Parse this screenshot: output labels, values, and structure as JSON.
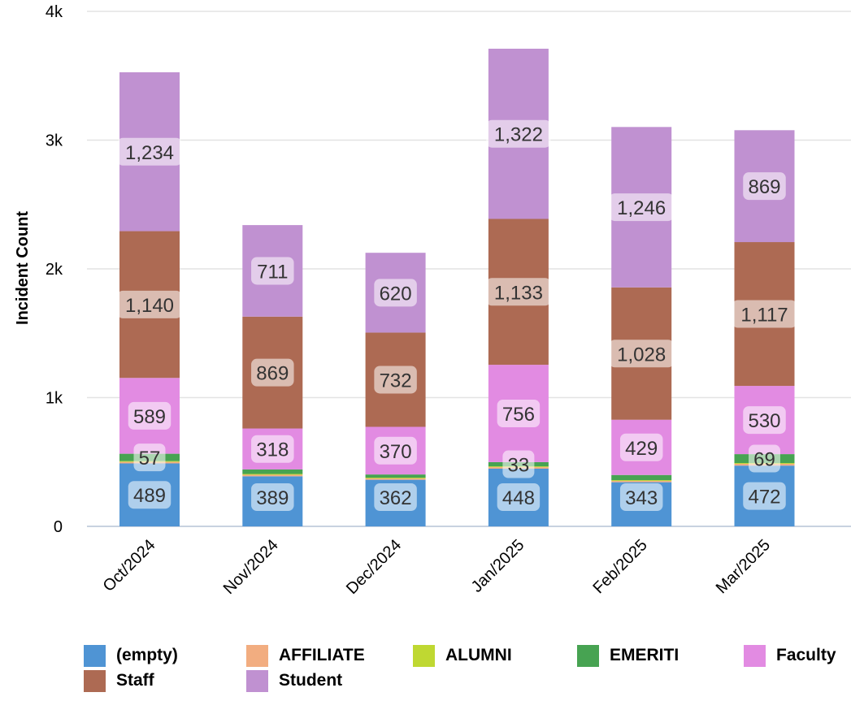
{
  "chart_data": {
    "type": "bar",
    "stacked": true,
    "categories": [
      "Oct/2024",
      "Nov/2024",
      "Dec/2024",
      "Jan/2025",
      "Feb/2025",
      "Mar/2025"
    ],
    "ylabel": "Incident Count",
    "ylim": [
      0,
      4000
    ],
    "y_ticks": [
      {
        "value": 0,
        "label": "0"
      },
      {
        "value": 1000,
        "label": "1k"
      },
      {
        "value": 2000,
        "label": "2k"
      },
      {
        "value": 3000,
        "label": "3k"
      },
      {
        "value": 4000,
        "label": "4k"
      }
    ],
    "grid": true,
    "legend_position": "bottom",
    "series": [
      {
        "name": "(empty)",
        "color": "#4f94d4",
        "values": [
          489,
          389,
          362,
          448,
          343,
          472
        ]
      },
      {
        "name": "AFFILIATE",
        "color": "#f2ad80",
        "values": [
          12,
          12,
          10,
          12,
          10,
          14
        ]
      },
      {
        "name": "ALUMNI",
        "color": "#bfd832",
        "values": [
          6,
          6,
          6,
          6,
          6,
          6
        ]
      },
      {
        "name": "EMERITI",
        "color": "#47a352",
        "values": [
          57,
          35,
          25,
          33,
          40,
          69
        ]
      },
      {
        "name": "Faculty",
        "color": "#e28be2",
        "values": [
          589,
          318,
          370,
          756,
          429,
          530
        ]
      },
      {
        "name": "Staff",
        "color": "#ad6a53",
        "values": [
          1140,
          869,
          732,
          1133,
          1028,
          1117
        ]
      },
      {
        "name": "Student",
        "color": "#c091d1",
        "values": [
          1234,
          711,
          620,
          1322,
          1246,
          869
        ]
      }
    ],
    "data_labels": [
      {
        "series": "(empty)",
        "values": [
          "489",
          "389",
          "362",
          "448",
          "343",
          "472"
        ]
      },
      {
        "series": "EMERITI",
        "values": [
          "57",
          null,
          null,
          "33",
          null,
          "69"
        ]
      },
      {
        "series": "Faculty",
        "values": [
          "589",
          "318",
          "370",
          "756",
          "429",
          "530"
        ]
      },
      {
        "series": "Staff",
        "values": [
          "1,140",
          "869",
          "732",
          "1,133",
          "1,028",
          "1,117"
        ]
      },
      {
        "series": "Student",
        "values": [
          "1,234",
          "711",
          "620",
          "1,322",
          "1,246",
          "869"
        ]
      }
    ]
  }
}
